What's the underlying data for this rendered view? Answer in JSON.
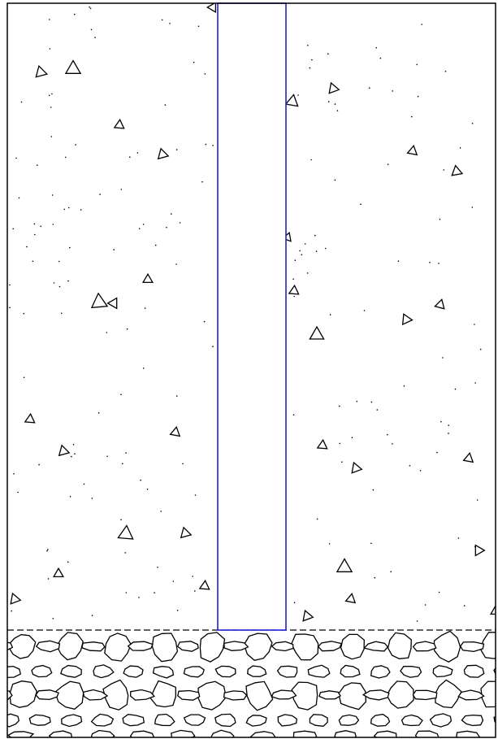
{
  "drawing": {
    "kind": "geotechnical-section",
    "layers": [
      {
        "name": "concrete-fill",
        "pattern": "triangles-and-dots"
      },
      {
        "name": "rubble-base",
        "pattern": "irregular-stones"
      }
    ],
    "elements": [
      {
        "name": "pile",
        "pattern": "none"
      }
    ]
  },
  "colors": {
    "outline": "#000000",
    "pile_outline": "#1f1fd6",
    "background": "#ffffff"
  }
}
